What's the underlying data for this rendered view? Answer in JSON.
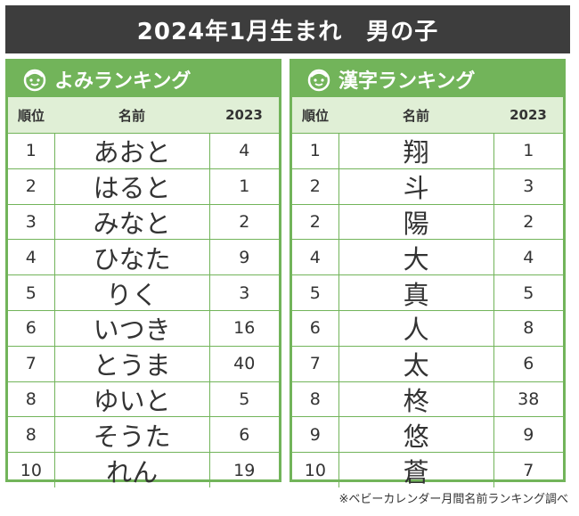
{
  "title": "2024年1月生まれ　男の子",
  "left": {
    "heading": "よみランキング",
    "icon": "boy-face-icon",
    "columns": {
      "rank": "順位",
      "name": "名前",
      "year": "2023"
    },
    "rows": [
      {
        "rank": "1",
        "name": "あおと",
        "prev": "4"
      },
      {
        "rank": "2",
        "name": "はると",
        "prev": "1"
      },
      {
        "rank": "3",
        "name": "みなと",
        "prev": "2"
      },
      {
        "rank": "4",
        "name": "ひなた",
        "prev": "9"
      },
      {
        "rank": "5",
        "name": "りく",
        "prev": "3"
      },
      {
        "rank": "6",
        "name": "いつき",
        "prev": "16"
      },
      {
        "rank": "7",
        "name": "とうま",
        "prev": "40"
      },
      {
        "rank": "8",
        "name": "ゆいと",
        "prev": "5"
      },
      {
        "rank": "8",
        "name": "そうた",
        "prev": "6"
      },
      {
        "rank": "10",
        "name": "れん",
        "prev": "19"
      }
    ]
  },
  "right": {
    "heading": "漢字ランキング",
    "icon": "boy-face-icon",
    "columns": {
      "rank": "順位",
      "name": "名前",
      "year": "2023"
    },
    "rows": [
      {
        "rank": "1",
        "name": "翔",
        "prev": "1"
      },
      {
        "rank": "2",
        "name": "斗",
        "prev": "3"
      },
      {
        "rank": "2",
        "name": "陽",
        "prev": "2"
      },
      {
        "rank": "4",
        "name": "大",
        "prev": "4"
      },
      {
        "rank": "5",
        "name": "真",
        "prev": "5"
      },
      {
        "rank": "6",
        "name": "人",
        "prev": "8"
      },
      {
        "rank": "7",
        "name": "太",
        "prev": "6"
      },
      {
        "rank": "8",
        "name": "柊",
        "prev": "38"
      },
      {
        "rank": "9",
        "name": "悠",
        "prev": "9"
      },
      {
        "rank": "10",
        "name": "蒼",
        "prev": "7"
      }
    ]
  },
  "footnote": "※ベビーカレンダー月間名前ランキング調べ",
  "colors": {
    "accent": "#72b45a",
    "header_bg": "#3d3d3d",
    "subheader_bg": "#e0efd6"
  }
}
